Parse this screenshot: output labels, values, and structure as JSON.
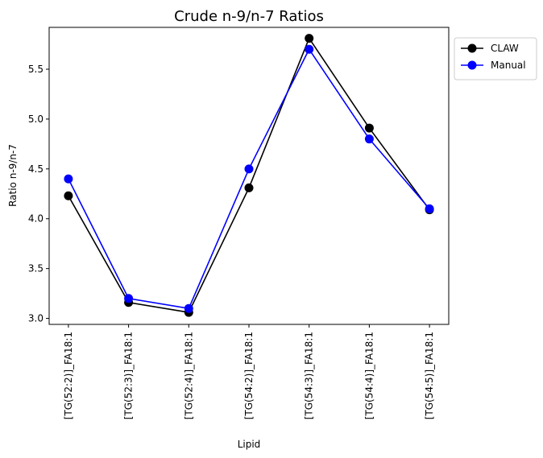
{
  "chart_data": {
    "type": "line",
    "title": "Crude n-9/n-7 Ratios",
    "xlabel": "Lipid",
    "ylabel": "Ratio n-9/n-7",
    "categories": [
      "[TG(52:2)]_FA18:1",
      "[TG(52:3)]_FA18:1",
      "[TG(52:4)]_FA18:1",
      "[TG(54:2)]_FA18:1",
      "[TG(54:3)]_FA18:1",
      "[TG(54:4)]_FA18:1",
      "[TG(54:5)]_FA18:1"
    ],
    "series": [
      {
        "name": "CLAW",
        "color": "#000000",
        "values": [
          4.23,
          3.16,
          3.06,
          4.31,
          5.81,
          4.91,
          4.09
        ]
      },
      {
        "name": "Manual",
        "color": "#0000ff",
        "values": [
          4.4,
          3.2,
          3.1,
          4.5,
          5.7,
          4.8,
          4.1
        ]
      }
    ],
    "ylim": [
      2.94,
      5.92
    ],
    "yticks": [
      3.0,
      3.5,
      4.0,
      4.5,
      5.0,
      5.5
    ],
    "ytick_labels": [
      "3.0",
      "3.5",
      "4.0",
      "4.5",
      "5.0",
      "5.5"
    ],
    "grid": false,
    "legend_position": "outside-top-right",
    "marker": "circle"
  }
}
